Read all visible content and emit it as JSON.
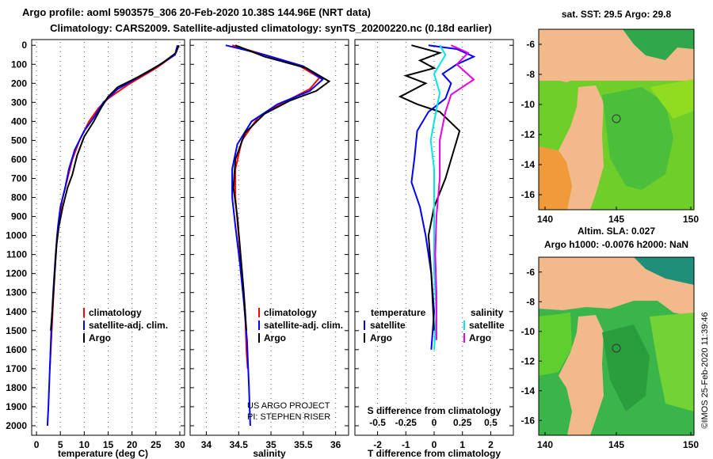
{
  "title_line1": "Argo profile: aoml 5903575_306 20-Feb-2020 10.38S 144.96E (NRT data)",
  "title_line2": "Climatology: CARS2009. Satellite-adjusted climatology: synTS_20200220.nc (0.18d earlier)",
  "colors": {
    "climatology": "#ff0000",
    "satellite": "#0000ff",
    "argo": "#000000",
    "sat_salinity": "#00e5e5",
    "argo_salinity": "#e500e5",
    "land": "#f2b98a"
  },
  "depth_ticks": [
    "0",
    "100",
    "200",
    "300",
    "400",
    "500",
    "600",
    "700",
    "800",
    "900",
    "1000",
    "1100",
    "1200",
    "1300",
    "1400",
    "1500",
    "1600",
    "1700",
    "1800",
    "1900",
    "2000"
  ],
  "legend1": {
    "climatology": "climatology",
    "satellite": "satellite-adj. clim.",
    "argo": "Argo"
  },
  "legend3": {
    "temperature": "temperature",
    "salinity": "salinity",
    "satellite": "satellite",
    "argo": "Argo"
  },
  "credit": {
    "line1": "US ARGO PROJECT",
    "line2": "PI: STEPHEN RISER"
  },
  "map_top": {
    "title": "sat. SST: 29.5 Argo: 29.8",
    "y_ticks": [
      "-6",
      "-8",
      "-10",
      "-12",
      "-14",
      "-16"
    ],
    "x_ticks": [
      "140",
      "145",
      "150"
    ]
  },
  "map_bottom": {
    "title1": "Altim. SLA: 0.027",
    "title2": "Argo h1000: -0.0076 h2000: NaN",
    "y_ticks": [
      "-6",
      "-8",
      "-10",
      "-12",
      "-14",
      "-16"
    ],
    "x_ticks": [
      "140",
      "145",
      "150"
    ]
  },
  "watermark": "©IMOS 25-Feb-2020 11:39:46",
  "chart_data": [
    {
      "type": "line",
      "title": "temperature profile",
      "xlabel": "temperature (deg C)",
      "ylabel": "depth",
      "xlim": [
        -1,
        31
      ],
      "ylim": [
        2050,
        -30
      ],
      "x_ticks": [
        "0",
        "5",
        "10",
        "15",
        "20",
        "25",
        "30"
      ],
      "series": [
        {
          "name": "climatology",
          "color": "red",
          "points": [
            [
              29.5,
              0
            ],
            [
              29,
              50
            ],
            [
              25,
              120
            ],
            [
              19,
              210
            ],
            [
              15,
              280
            ],
            [
              13,
              330
            ],
            [
              11,
              400
            ],
            [
              9,
              500
            ],
            [
              7.5,
              600
            ],
            [
              6.5,
              700
            ],
            [
              5.5,
              800
            ],
            [
              4.8,
              900
            ],
            [
              4.3,
              1000
            ],
            [
              3.8,
              1200
            ],
            [
              3.4,
              1400
            ],
            [
              3,
              1600
            ],
            [
              2.8,
              1700
            ]
          ]
        },
        {
          "name": "satellite-adj. clim.",
          "color": "blue",
          "points": [
            [
              29.5,
              0
            ],
            [
              29,
              50
            ],
            [
              24,
              130
            ],
            [
              17,
              230
            ],
            [
              14,
              300
            ],
            [
              12,
              380
            ],
            [
              10,
              450
            ],
            [
              8,
              550
            ],
            [
              6.8,
              650
            ],
            [
              6,
              750
            ],
            [
              5,
              850
            ],
            [
              4.5,
              950
            ],
            [
              4,
              1100
            ],
            [
              3.5,
              1300
            ],
            [
              3.1,
              1500
            ],
            [
              2.8,
              1700
            ],
            [
              2.5,
              1900
            ],
            [
              2.3,
              2000
            ]
          ]
        },
        {
          "name": "Argo",
          "color": "black",
          "points": [
            [
              29.8,
              0
            ],
            [
              29.2,
              40
            ],
            [
              26,
              100
            ],
            [
              21,
              170
            ],
            [
              17,
              220
            ],
            [
              15,
              270
            ],
            [
              13.5,
              330
            ],
            [
              12,
              400
            ],
            [
              10,
              480
            ],
            [
              8.5,
              580
            ],
            [
              7.5,
              680
            ],
            [
              6.5,
              750
            ],
            [
              5.5,
              850
            ],
            [
              4.7,
              950
            ],
            [
              4.2,
              1050
            ],
            [
              3.7,
              1250
            ],
            [
              3.3,
              1400
            ],
            [
              3,
              1500
            ]
          ]
        }
      ]
    },
    {
      "type": "line",
      "title": "salinity profile",
      "xlabel": "salinity",
      "ylabel": "depth",
      "xlim": [
        33.75,
        36.2
      ],
      "ylim": [
        2050,
        -30
      ],
      "x_ticks": [
        "34",
        "34.5",
        "35",
        "35.5",
        "36"
      ],
      "series": [
        {
          "name": "climatology",
          "color": "red",
          "points": [
            [
              34.4,
              0
            ],
            [
              34.8,
              40
            ],
            [
              35.4,
              100
            ],
            [
              35.75,
              170
            ],
            [
              35.6,
              230
            ],
            [
              35.2,
              300
            ],
            [
              34.8,
              380
            ],
            [
              34.55,
              500
            ],
            [
              34.45,
              650
            ],
            [
              34.45,
              800
            ],
            [
              34.5,
              1000
            ],
            [
              34.55,
              1200
            ],
            [
              34.6,
              1400
            ],
            [
              34.62,
              1600
            ],
            [
              34.64,
              1700
            ]
          ]
        },
        {
          "name": "satellite-adj. clim.",
          "color": "blue",
          "points": [
            [
              34.3,
              0
            ],
            [
              34.9,
              50
            ],
            [
              35.5,
              110
            ],
            [
              35.8,
              180
            ],
            [
              35.6,
              240
            ],
            [
              35.1,
              310
            ],
            [
              34.7,
              400
            ],
            [
              34.48,
              520
            ],
            [
              34.4,
              650
            ],
            [
              34.4,
              800
            ],
            [
              34.45,
              950
            ],
            [
              34.52,
              1150
            ],
            [
              34.58,
              1350
            ],
            [
              34.63,
              1550
            ],
            [
              34.66,
              1800
            ],
            [
              34.68,
              2000
            ]
          ]
        },
        {
          "name": "Argo",
          "color": "black",
          "points": [
            [
              34.45,
              0
            ],
            [
              34.9,
              60
            ],
            [
              35.55,
              120
            ],
            [
              35.9,
              190
            ],
            [
              35.7,
              240
            ],
            [
              35.3,
              290
            ],
            [
              34.9,
              360
            ],
            [
              34.6,
              460
            ],
            [
              34.45,
              600
            ],
            [
              34.42,
              750
            ],
            [
              34.48,
              900
            ],
            [
              34.53,
              1100
            ],
            [
              34.58,
              1300
            ],
            [
              34.62,
              1500
            ]
          ]
        }
      ]
    },
    {
      "type": "line",
      "title": "difference from climatology",
      "xlabel": "T difference from climatology",
      "x2label": "S difference from climatology",
      "ylim": [
        2050,
        -30
      ],
      "xlim": [
        -2.8,
        2.8
      ],
      "x_ticks": [
        "-2",
        "-1",
        "0",
        "1",
        "2"
      ],
      "x2_ticks": [
        "-0.5",
        "-0.25",
        "0",
        "0.25",
        "0.5"
      ],
      "x2lim": [
        -0.7,
        0.7
      ],
      "series": [
        {
          "name": "temperature satellite",
          "color": "blue",
          "axis": "T",
          "points": [
            [
              -0.2,
              0
            ],
            [
              0.8,
              20
            ],
            [
              1.4,
              60
            ],
            [
              0.8,
              100
            ],
            [
              0.3,
              150
            ],
            [
              0.6,
              200
            ],
            [
              0.4,
              280
            ],
            [
              -0.2,
              350
            ],
            [
              -0.6,
              450
            ],
            [
              -0.7,
              600
            ],
            [
              -0.8,
              720
            ],
            [
              -0.5,
              850
            ],
            [
              -0.3,
              1000
            ],
            [
              -0.1,
              1200
            ],
            [
              0,
              1400
            ],
            [
              -0.1,
              1600
            ]
          ]
        },
        {
          "name": "temperature Argo",
          "color": "black",
          "axis": "T",
          "points": [
            [
              -0.8,
              0
            ],
            [
              0.2,
              40
            ],
            [
              -0.5,
              80
            ],
            [
              0,
              120
            ],
            [
              -1.0,
              160
            ],
            [
              -0.3,
              200
            ],
            [
              -1.2,
              270
            ],
            [
              -0.6,
              310
            ],
            [
              0.2,
              350
            ],
            [
              0.9,
              450
            ],
            [
              0.7,
              550
            ],
            [
              0.4,
              700
            ],
            [
              0,
              850
            ],
            [
              -0.2,
              1000
            ],
            [
              -0.1,
              1200
            ],
            [
              0,
              1500
            ]
          ]
        },
        {
          "name": "salinity satellite",
          "color": "cyan",
          "axis": "S",
          "points": [
            [
              0.05,
              0
            ],
            [
              0.1,
              50
            ],
            [
              0,
              150
            ],
            [
              0.05,
              250
            ],
            [
              0,
              400
            ],
            [
              -0.03,
              500
            ],
            [
              0,
              650
            ],
            [
              0,
              800
            ],
            [
              0,
              1000
            ],
            [
              0,
              1200
            ],
            [
              0.02,
              1400
            ],
            [
              0,
              1600
            ]
          ]
        },
        {
          "name": "salinity Argo",
          "color": "magenta",
          "axis": "S",
          "points": [
            [
              0.15,
              0
            ],
            [
              0.3,
              40
            ],
            [
              0.2,
              100
            ],
            [
              0.35,
              180
            ],
            [
              0.15,
              260
            ],
            [
              0.1,
              350
            ],
            [
              0.05,
              500
            ],
            [
              0.05,
              700
            ],
            [
              0.02,
              900
            ],
            [
              0.01,
              1100
            ],
            [
              0.02,
              1300
            ],
            [
              0.02,
              1550
            ]
          ]
        }
      ]
    }
  ]
}
